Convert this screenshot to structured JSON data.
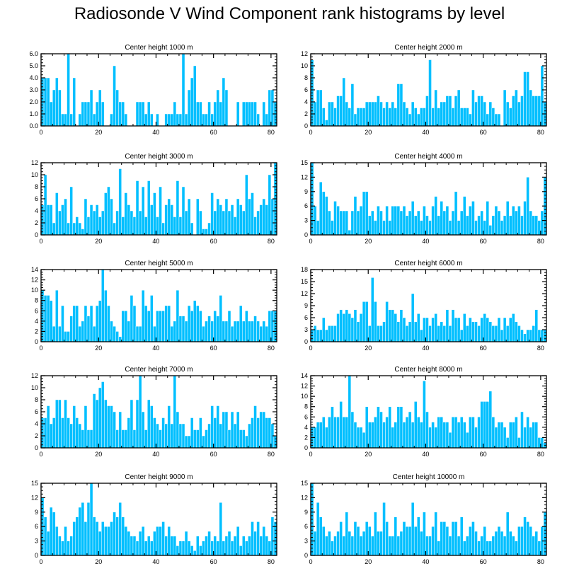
{
  "title": "Radiosonde V Wind Component rank histograms by level",
  "colors": {
    "bar": "#00bfff",
    "bar_edge": "#ffffff",
    "axis": "#000000"
  },
  "chart_data": [
    {
      "type": "bar",
      "title": "Center height 1000 m",
      "xlim": [
        0,
        82
      ],
      "ylim": [
        0,
        6
      ],
      "xticks": [
        0,
        20,
        40,
        60,
        80
      ],
      "yticks": [
        0,
        1,
        2,
        3,
        4,
        5,
        6
      ],
      "ytick_labels": [
        "0.0",
        "1.0",
        "2.0",
        "3.0",
        "4.0",
        "5.0",
        "6.0"
      ],
      "values": [
        4,
        4,
        4,
        2,
        3,
        4,
        3,
        1,
        1,
        6,
        1,
        4,
        0,
        1,
        2,
        2,
        2,
        3,
        1,
        2,
        3,
        2,
        0,
        0,
        1,
        5,
        3,
        2,
        2,
        1,
        0,
        0,
        0,
        2,
        2,
        2,
        1,
        2,
        1,
        0,
        1,
        0,
        0,
        1,
        1,
        1,
        2,
        1,
        1,
        6,
        1,
        3,
        4,
        5,
        2,
        2,
        1,
        1,
        2,
        1,
        2,
        3,
        2,
        4,
        3,
        0,
        0,
        0,
        2,
        0,
        2,
        2,
        2,
        2,
        2,
        1,
        0,
        2,
        1,
        3,
        3,
        2
      ]
    },
    {
      "type": "bar",
      "title": "Center height 2000 m",
      "xlim": [
        0,
        82
      ],
      "ylim": [
        0,
        12
      ],
      "xticks": [
        0,
        20,
        40,
        60,
        80
      ],
      "yticks": [
        0,
        2,
        4,
        6,
        8,
        10,
        12
      ],
      "ytick_labels": [
        "0",
        "2",
        "4",
        "6",
        "8",
        "10",
        "12"
      ],
      "values": [
        11,
        4,
        6,
        6,
        3,
        1,
        4,
        4,
        3,
        5,
        5,
        8,
        4,
        3,
        7,
        2,
        3,
        3,
        3,
        4,
        4,
        4,
        4,
        5,
        4,
        3,
        4,
        3,
        4,
        3,
        7,
        7,
        4,
        3,
        2,
        4,
        3,
        2,
        3,
        3,
        5,
        11,
        3,
        6,
        3,
        4,
        4,
        5,
        5,
        3,
        5,
        6,
        3,
        3,
        3,
        2,
        6,
        4,
        5,
        5,
        4,
        2,
        4,
        3,
        2,
        2,
        0,
        6,
        4,
        3,
        5,
        6,
        4,
        5,
        9,
        9,
        6,
        5,
        5,
        5,
        10,
        4
      ]
    },
    {
      "type": "bar",
      "title": "Center height 3000 m",
      "xlim": [
        0,
        82
      ],
      "ylim": [
        0,
        12
      ],
      "xticks": [
        0,
        20,
        40,
        60,
        80
      ],
      "yticks": [
        0,
        2,
        4,
        6,
        8,
        10,
        12
      ],
      "ytick_labels": [
        "0",
        "2",
        "4",
        "6",
        "8",
        "10",
        "12"
      ],
      "values": [
        5,
        10,
        5,
        5,
        2,
        7,
        4,
        5,
        6,
        2,
        8,
        2,
        3,
        2,
        1,
        6,
        3,
        5,
        4,
        5,
        3,
        4,
        7,
        8,
        6,
        2,
        4,
        11,
        3,
        7,
        5,
        4,
        3,
        9,
        4,
        8,
        3,
        9,
        5,
        7,
        3,
        8,
        2,
        5,
        6,
        5,
        3,
        9,
        3,
        8,
        4,
        6,
        2,
        0,
        6,
        4,
        1,
        1,
        2,
        7,
        4,
        6,
        5,
        4,
        6,
        4,
        5,
        3,
        6,
        5,
        4,
        10,
        6,
        7,
        3,
        4,
        5,
        6,
        5,
        10,
        6,
        12
      ]
    },
    {
      "type": "bar",
      "title": "Center height 4000 m",
      "xlim": [
        0,
        82
      ],
      "ylim": [
        0,
        15
      ],
      "xticks": [
        0,
        20,
        40,
        60,
        80
      ],
      "yticks": [
        0,
        3,
        6,
        9,
        12,
        15
      ],
      "ytick_labels": [
        "0",
        "3",
        "6",
        "9",
        "12",
        "15"
      ],
      "values": [
        15,
        6,
        3,
        11,
        9,
        8,
        5,
        3,
        7,
        6,
        5,
        5,
        5,
        1,
        5,
        8,
        5,
        6,
        9,
        9,
        4,
        5,
        3,
        6,
        5,
        3,
        6,
        3,
        6,
        6,
        6,
        5,
        6,
        4,
        5,
        7,
        4,
        5,
        3,
        6,
        4,
        3,
        6,
        8,
        4,
        7,
        5,
        6,
        3,
        5,
        9,
        3,
        5,
        8,
        4,
        6,
        7,
        3,
        4,
        5,
        3,
        7,
        2,
        4,
        6,
        5,
        3,
        4,
        7,
        4,
        6,
        5,
        6,
        4,
        7,
        12,
        5,
        4,
        4,
        3,
        5,
        12
      ]
    },
    {
      "type": "bar",
      "title": "Center height 5000 m",
      "xlim": [
        0,
        82
      ],
      "ylim": [
        0,
        14
      ],
      "xticks": [
        0,
        20,
        40,
        60,
        80
      ],
      "yticks": [
        0,
        2,
        4,
        6,
        8,
        10,
        12,
        14
      ],
      "ytick_labels": [
        "0",
        "2",
        "4",
        "6",
        "8",
        "10",
        "12",
        "14"
      ],
      "values": [
        10,
        9,
        9,
        8,
        3,
        10,
        3,
        7,
        2,
        2,
        5,
        7,
        7,
        3,
        4,
        7,
        5,
        7,
        3,
        7,
        8,
        14,
        10,
        7,
        4,
        3,
        2,
        1,
        6,
        6,
        4,
        9,
        7,
        3,
        3,
        10,
        7,
        6,
        9,
        3,
        6,
        6,
        6,
        7,
        7,
        3,
        4,
        10,
        5,
        5,
        4,
        7,
        6,
        8,
        7,
        6,
        3,
        4,
        5,
        4,
        6,
        5,
        9,
        4,
        4,
        6,
        3,
        4,
        4,
        7,
        4,
        6,
        4,
        4,
        5,
        4,
        3,
        4,
        3,
        6,
        6,
        6
      ]
    },
    {
      "type": "bar",
      "title": "Center height 6000 m",
      "xlim": [
        0,
        82
      ],
      "ylim": [
        0,
        18
      ],
      "xticks": [
        0,
        20,
        40,
        60,
        80
      ],
      "yticks": [
        0,
        3,
        6,
        9,
        12,
        15,
        18
      ],
      "ytick_labels": [
        "0",
        "3",
        "6",
        "9",
        "12",
        "15",
        "18"
      ],
      "values": [
        3,
        4,
        3,
        3,
        6,
        3,
        4,
        4,
        4,
        7,
        8,
        7,
        8,
        7,
        6,
        8,
        5,
        7,
        10,
        10,
        4,
        16,
        10,
        4,
        4,
        5,
        10,
        8,
        8,
        7,
        5,
        8,
        6,
        4,
        5,
        12,
        5,
        7,
        3,
        6,
        6,
        4,
        6,
        7,
        4,
        5,
        4,
        8,
        4,
        8,
        6,
        6,
        3,
        7,
        4,
        6,
        5,
        5,
        4,
        6,
        7,
        6,
        5,
        4,
        4,
        6,
        3,
        6,
        4,
        6,
        7,
        5,
        4,
        3,
        2,
        3,
        3,
        4,
        8,
        3,
        3,
        3
      ]
    },
    {
      "type": "bar",
      "title": "Center height 7000 m",
      "xlim": [
        0,
        82
      ],
      "ylim": [
        0,
        12
      ],
      "xticks": [
        0,
        20,
        40,
        60,
        80
      ],
      "yticks": [
        0,
        2,
        4,
        6,
        8,
        10,
        12
      ],
      "ytick_labels": [
        "0",
        "2",
        "4",
        "6",
        "8",
        "10",
        "12"
      ],
      "values": [
        5,
        5,
        7,
        4,
        5,
        8,
        8,
        5,
        8,
        5,
        4,
        7,
        5,
        4,
        3,
        7,
        3,
        3,
        9,
        8,
        10,
        11,
        8,
        7,
        7,
        6,
        3,
        6,
        3,
        3,
        5,
        8,
        3,
        8,
        12,
        6,
        3,
        8,
        7,
        5,
        4,
        3,
        5,
        4,
        7,
        4,
        12,
        6,
        4,
        4,
        2,
        2,
        5,
        3,
        3,
        5,
        2,
        3,
        4,
        7,
        5,
        7,
        4,
        6,
        6,
        3,
        6,
        4,
        6,
        3,
        3,
        2,
        4,
        5,
        7,
        5,
        6,
        6,
        5,
        5,
        4,
        2
      ]
    },
    {
      "type": "bar",
      "title": "Center height 8000 m",
      "xlim": [
        0,
        82
      ],
      "ylim": [
        0,
        14
      ],
      "xticks": [
        0,
        20,
        40,
        60,
        80
      ],
      "yticks": [
        0,
        2,
        4,
        6,
        8,
        10,
        12,
        14
      ],
      "ytick_labels": [
        "0",
        "2",
        "4",
        "6",
        "8",
        "10",
        "12",
        "14"
      ],
      "values": [
        4,
        4,
        5,
        5,
        6,
        4,
        6,
        8,
        6,
        6,
        9,
        6,
        6,
        14,
        7,
        5,
        4,
        4,
        3,
        8,
        5,
        5,
        6,
        8,
        7,
        5,
        6,
        8,
        4,
        5,
        8,
        8,
        5,
        6,
        7,
        5,
        9,
        6,
        5,
        13,
        7,
        4,
        5,
        4,
        6,
        6,
        5,
        5,
        3,
        6,
        6,
        5,
        6,
        5,
        3,
        6,
        6,
        4,
        6,
        9,
        9,
        9,
        11,
        6,
        4,
        5,
        5,
        4,
        2,
        5,
        5,
        6,
        2,
        7,
        4,
        6,
        4,
        5,
        5,
        2,
        2,
        1
      ]
    },
    {
      "type": "bar",
      "title": "Center height 9000 m",
      "xlim": [
        0,
        82
      ],
      "ylim": [
        0,
        15
      ],
      "xticks": [
        0,
        20,
        40,
        60,
        80
      ],
      "yticks": [
        0,
        3,
        6,
        9,
        12,
        15
      ],
      "ytick_labels": [
        "0",
        "3",
        "6",
        "9",
        "12",
        "15"
      ],
      "values": [
        12,
        8,
        5,
        10,
        9,
        6,
        4,
        3,
        6,
        3,
        4,
        7,
        8,
        10,
        11,
        7,
        11,
        15,
        8,
        7,
        5,
        7,
        6,
        6,
        7,
        9,
        8,
        11,
        8,
        6,
        5,
        4,
        4,
        3,
        5,
        6,
        3,
        4,
        3,
        5,
        6,
        6,
        7,
        4,
        6,
        4,
        4,
        2,
        3,
        3,
        5,
        3,
        2,
        1,
        4,
        2,
        3,
        4,
        5,
        3,
        4,
        3,
        11,
        3,
        4,
        5,
        3,
        4,
        6,
        2,
        4,
        3,
        4,
        7,
        5,
        7,
        4,
        6,
        4,
        3,
        8,
        7
      ]
    },
    {
      "type": "bar",
      "title": "Center height 10000 m",
      "xlim": [
        0,
        82
      ],
      "ylim": [
        0,
        15
      ],
      "xticks": [
        0,
        20,
        40,
        60,
        80
      ],
      "yticks": [
        0,
        3,
        6,
        9,
        12,
        15
      ],
      "ytick_labels": [
        "0",
        "3",
        "6",
        "9",
        "12",
        "15"
      ],
      "values": [
        15,
        5,
        11,
        8,
        6,
        4,
        5,
        3,
        4,
        5,
        7,
        4,
        9,
        5,
        4,
        7,
        6,
        4,
        5,
        7,
        6,
        4,
        9,
        5,
        5,
        11,
        7,
        4,
        4,
        8,
        4,
        5,
        7,
        6,
        6,
        11,
        6,
        8,
        5,
        9,
        4,
        4,
        6,
        9,
        3,
        7,
        7,
        6,
        4,
        7,
        7,
        4,
        8,
        3,
        4,
        6,
        7,
        5,
        3,
        4,
        6,
        3,
        3,
        4,
        5,
        6,
        5,
        4,
        9,
        5,
        4,
        3,
        6,
        6,
        8,
        7,
        6,
        4,
        5,
        3,
        6,
        9
      ]
    }
  ]
}
